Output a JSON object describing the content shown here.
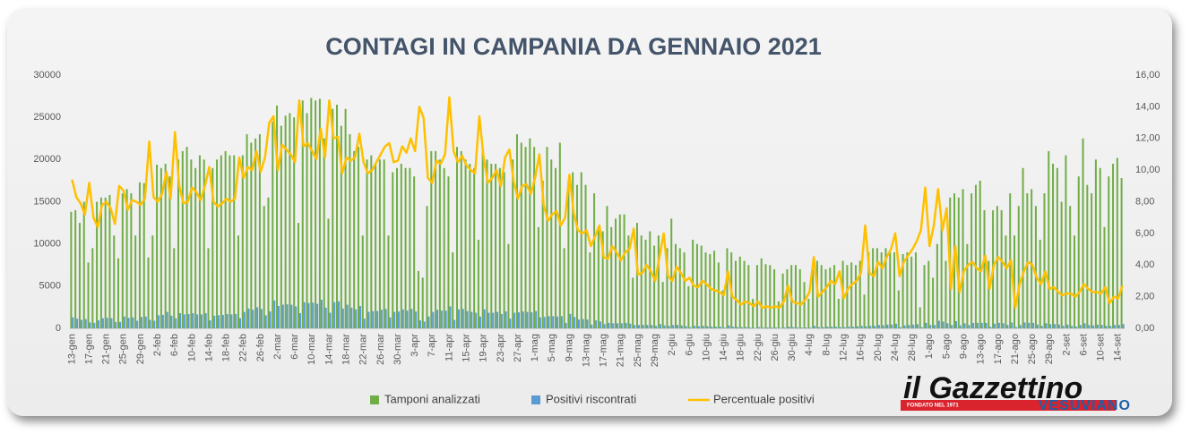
{
  "chart_data": {
    "type": "bar-line",
    "title": "CONTAGI IN CAMPANIA DA GENNAIO 2021",
    "categories": [
      "13-gen",
      null,
      null,
      null,
      "17-gen",
      null,
      null,
      null,
      "21-gen",
      null,
      null,
      null,
      "25-gen",
      null,
      null,
      null,
      "29-gen",
      null,
      null,
      null,
      "2-feb",
      null,
      null,
      null,
      "6-feb",
      null,
      null,
      null,
      "10-feb",
      null,
      null,
      null,
      "14-feb",
      null,
      null,
      null,
      "18-feb",
      null,
      null,
      null,
      "22-feb",
      null,
      null,
      null,
      "26-feb",
      null,
      null,
      null,
      "2-mar",
      null,
      null,
      null,
      "6-mar",
      null,
      null,
      null,
      "10-mar",
      null,
      null,
      null,
      "14-mar",
      null,
      null,
      null,
      "18-mar",
      null,
      null,
      null,
      "22-mar",
      null,
      null,
      null,
      "26-mar",
      null,
      null,
      null,
      "30-mar",
      null,
      null,
      null,
      "3-apr",
      null,
      null,
      null,
      "7-apr",
      null,
      null,
      null,
      "11-apr",
      null,
      null,
      null,
      "15-apr",
      null,
      null,
      null,
      "19-apr",
      null,
      null,
      null,
      "23-apr",
      null,
      null,
      null,
      "27-apr",
      null,
      null,
      null,
      "1-mag",
      null,
      null,
      null,
      "5-mag",
      null,
      null,
      null,
      "9-mag",
      null,
      null,
      null,
      "13-mag",
      null,
      null,
      null,
      "17-mag",
      null,
      null,
      null,
      "21-mag",
      null,
      null,
      null,
      "25-mag",
      null,
      null,
      null,
      "29-mag",
      null,
      null,
      null,
      "2-giu",
      null,
      null,
      null,
      "6-giu",
      null,
      null,
      null,
      "10-giu",
      null,
      null,
      null,
      "14-giu",
      null,
      null,
      null,
      "18-giu",
      null,
      null,
      null,
      "22-giu",
      null,
      null,
      null,
      "26-giu",
      null,
      null,
      null,
      "30-giu",
      null,
      null,
      null,
      "4-lug",
      null,
      null,
      null,
      "8-lug",
      null,
      null,
      null,
      "12-lug",
      null,
      null,
      null,
      "16-lug",
      null,
      null,
      null,
      "20-lug",
      null,
      null,
      null,
      "24-lug",
      null,
      null,
      null,
      "28-lug",
      null,
      null,
      null,
      "1-ago",
      null,
      null,
      null,
      "5-ago",
      null,
      null,
      null,
      "9-ago",
      null,
      null,
      null,
      "13-ago",
      null,
      null,
      null,
      "17-ago",
      null,
      null,
      null,
      "21-ago",
      null,
      null,
      null,
      "25-ago",
      null,
      null,
      null,
      "29-ago",
      null,
      null,
      null,
      "2-set",
      null,
      null,
      null,
      "6-set",
      null,
      null,
      null,
      "10-set",
      null,
      null,
      null,
      "14-set",
      null
    ],
    "series": [
      {
        "name": "Tamponi analizzati",
        "type": "bar",
        "color": "#70ad47",
        "values": [
          13800,
          14000,
          12500,
          15000,
          7800,
          9500,
          15000,
          15500,
          15500,
          15800,
          11000,
          8300,
          16000,
          16500,
          16000,
          11000,
          17300,
          17200,
          8400,
          11000,
          19400,
          19000,
          19500,
          18000,
          9500,
          20000,
          21000,
          21500,
          20000,
          19000,
          20500,
          20000,
          9500,
          19000,
          20000,
          20500,
          21000,
          20500,
          20500,
          11000,
          20500,
          23000,
          22000,
          22500,
          23000,
          14500,
          15500,
          24500,
          26400,
          24000,
          25200,
          25500,
          25000,
          12500,
          27000,
          25500,
          27300,
          27000,
          27200,
          22500,
          13000,
          26000,
          26500,
          24000,
          26000,
          23000,
          21000,
          21500,
          11000,
          20000,
          20500,
          19500,
          20000,
          20000,
          11000,
          18500,
          19000,
          19500,
          19000,
          19000,
          18000,
          6800,
          6000,
          14500,
          21000,
          21000,
          20000,
          19000,
          18000,
          9000,
          21500,
          21000,
          20000,
          19500,
          19000,
          10500,
          21000,
          20000,
          19500,
          19500,
          19000,
          18500,
          10000,
          20000,
          23000,
          22000,
          21500,
          22500,
          21500,
          12000,
          17500,
          21500,
          20000,
          19000,
          22000,
          9500,
          17500,
          18500,
          17000,
          18500,
          17000,
          9000,
          16000,
          12000,
          11500,
          14500,
          12000,
          13000,
          13500,
          13500,
          11000,
          6000,
          12500,
          11000,
          10500,
          11500,
          9800,
          11000,
          5500,
          9500,
          13000,
          10000,
          9500,
          9000,
          5000,
          10500,
          10000,
          9800,
          9000,
          8800,
          9200,
          7800,
          4500,
          9500,
          9000,
          8000,
          8500,
          8000,
          7500,
          3500,
          7500,
          8300,
          7600,
          7500,
          7000,
          3200,
          6500,
          7000,
          7500,
          7500,
          7000,
          5500,
          3500,
          7000,
          8000,
          7500,
          7000,
          7200,
          7500,
          3500,
          8000,
          7500,
          7800,
          7500,
          8000,
          4000,
          9000,
          9500,
          9500,
          9000,
          9500,
          9000,
          9000,
          4500,
          8800,
          9000,
          8500,
          9000,
          2500,
          7500,
          8000,
          6000,
          10000,
          12500,
          8000,
          15500,
          16000,
          15500,
          16500,
          10000,
          16000,
          17000,
          17500,
          14000,
          8000,
          14000,
          14500,
          14000,
          11000,
          16000,
          11000,
          14500,
          19000,
          16000,
          16500,
          14500,
          10500,
          16000,
          21000,
          19500,
          19000,
          15000,
          20500,
          14500,
          11000,
          18000,
          22500,
          17000,
          16000,
          20000,
          19000,
          12000,
          18000,
          19500,
          20200,
          17800
        ]
      },
      {
        "name": "Positivi riscontrati",
        "type": "bar",
        "color": "#5b9bd5",
        "values": [
          1300,
          1150,
          1000,
          1100,
          700,
          650,
          950,
          1200,
          1250,
          1200,
          750,
          750,
          1400,
          1250,
          1300,
          900,
          1350,
          1400,
          1000,
          900,
          1550,
          1600,
          1950,
          1500,
          1200,
          1800,
          1650,
          1700,
          1800,
          1650,
          1650,
          1800,
          950,
          1500,
          1550,
          1600,
          1700,
          1650,
          1700,
          1200,
          1950,
          2350,
          2200,
          2500,
          2300,
          1550,
          2000,
          3300,
          2650,
          2800,
          2850,
          2800,
          2600,
          1800,
          3100,
          3000,
          3050,
          2900,
          3400,
          2450,
          1850,
          3100,
          3200,
          2350,
          2800,
          2450,
          2250,
          2650,
          1150,
          1950,
          2050,
          2050,
          2200,
          2300,
          1300,
          1950,
          2000,
          2250,
          2100,
          2300,
          2000,
          950,
          800,
          1400,
          1950,
          2200,
          2100,
          2100,
          2600,
          1000,
          2250,
          2300,
          2050,
          1950,
          1850,
          1400,
          2250,
          1850,
          1850,
          1950,
          1700,
          2000,
          1150,
          1850,
          1900,
          2000,
          1950,
          1900,
          2050,
          1300,
          1350,
          1450,
          1450,
          1400,
          1450,
          650,
          1700,
          1350,
          1050,
          1100,
          1050,
          450,
          950,
          800,
          500,
          650,
          600,
          600,
          600,
          650,
          550,
          400,
          400,
          400,
          400,
          400,
          300,
          500,
          350,
          300,
          400,
          400,
          350,
          250,
          150,
          300,
          250,
          300,
          250,
          200,
          200,
          200,
          100,
          350,
          200,
          150,
          150,
          150,
          100,
          50,
          150,
          100,
          100,
          100,
          100,
          50,
          100,
          200,
          150,
          100,
          100,
          100,
          100,
          300,
          150,
          150,
          200,
          200,
          200,
          150,
          150,
          200,
          200,
          250,
          300,
          250,
          300,
          300,
          400,
          350,
          450,
          450,
          550,
          150,
          350,
          400,
          450,
          500,
          150,
          650,
          400,
          400,
          900,
          800,
          600,
          400,
          850,
          350,
          600,
          400,
          650,
          650,
          650,
          650,
          200,
          550,
          650,
          600,
          400,
          700,
          150,
          400,
          700,
          650,
          650,
          450,
          300,
          600,
          500,
          500,
          450,
          300,
          450,
          300,
          200,
          400,
          600,
          400,
          350,
          450,
          400,
          300,
          300,
          400,
          400,
          500
        ]
      },
      {
        "name": "Percentuale positivi",
        "type": "line",
        "axis": "y2",
        "color": "#ffc000",
        "values": [
          9.4,
          8.3,
          7.9,
          7.2,
          9.2,
          7.0,
          6.4,
          7.8,
          8.0,
          7.6,
          6.6,
          9.0,
          8.7,
          7.5,
          8.1,
          8.0,
          7.8,
          8.2,
          11.8,
          8.3,
          8.0,
          8.5,
          9.9,
          8.2,
          12.4,
          9.0,
          7.9,
          8.0,
          8.9,
          8.6,
          8.1,
          9.0,
          10.2,
          8.0,
          7.7,
          7.9,
          8.2,
          8.0,
          8.2,
          10.8,
          9.5,
          10.2,
          10.0,
          11.2,
          9.9,
          10.8,
          13.0,
          13.4,
          10.0,
          11.6,
          11.3,
          11.0,
          10.5,
          14.4,
          11.5,
          11.7,
          11.2,
          10.7,
          12.6,
          10.8,
          14.4,
          12.0,
          12.1,
          9.8,
          10.8,
          10.6,
          10.8,
          12.3,
          10.5,
          9.8,
          10.0,
          10.5,
          11.0,
          11.5,
          11.7,
          10.5,
          10.6,
          11.5,
          11.1,
          12.0,
          11.2,
          14.0,
          13.3,
          9.5,
          9.2,
          10.6,
          10.4,
          11.0,
          14.6,
          11.2,
          10.5,
          10.9,
          10.3,
          10.0,
          9.8,
          13.4,
          10.8,
          9.2,
          9.5,
          10.0,
          9.0,
          10.8,
          11.3,
          9.3,
          8.2,
          9.0,
          9.1,
          8.5,
          9.5,
          11.0,
          7.8,
          6.8,
          7.2,
          7.4,
          6.5,
          7.0,
          9.7,
          7.3,
          6.2,
          6.0,
          6.2,
          5.2,
          5.8,
          6.5,
          4.5,
          4.4,
          5.2,
          4.8,
          4.3,
          4.8,
          5.0,
          6.3,
          3.4,
          3.5,
          4.0,
          3.6,
          3.0,
          4.5,
          6.0,
          3.3,
          3.0,
          3.9,
          3.5,
          3.0,
          3.2,
          2.7,
          2.6,
          3.0,
          2.8,
          2.5,
          2.4,
          2.3,
          2.1,
          3.6,
          2.0,
          1.8,
          1.5,
          1.7,
          1.6,
          1.4,
          1.7,
          1.3,
          1.4,
          1.3,
          1.4,
          1.3,
          1.7,
          2.7,
          1.7,
          1.6,
          1.5,
          1.8,
          2.3,
          4.5,
          2.0,
          2.3,
          2.6,
          3.0,
          2.8,
          3.6,
          1.9,
          2.5,
          2.8,
          3.0,
          3.5,
          6.5,
          3.5,
          3.3,
          4.2,
          3.8,
          4.5,
          5.0,
          6.0,
          3.3,
          4.2,
          4.6,
          5.0,
          5.5,
          6.2,
          8.9,
          5.2,
          6.5,
          8.8,
          6.2,
          7.6,
          2.5,
          5.2,
          2.3,
          3.6,
          4.0,
          4.2,
          3.8,
          3.6,
          4.6,
          2.5,
          4.0,
          4.5,
          4.2,
          3.8,
          4.3,
          1.3,
          2.8,
          3.6,
          4.2,
          4.0,
          3.2,
          2.8,
          3.6,
          2.5,
          2.6,
          2.3,
          2.1,
          2.2,
          2.2,
          2.0,
          2.3,
          2.8,
          2.5,
          2.3,
          2.3,
          2.2,
          2.6,
          1.6,
          2.0,
          1.9,
          2.7
        ]
      }
    ],
    "ylim": [
      0,
      30000
    ],
    "yticks": [
      0,
      5000,
      10000,
      15000,
      20000,
      25000,
      30000
    ],
    "y2lim": [
      0,
      16
    ],
    "y2ticks": [
      {
        "value": 0,
        "label": "0,00"
      },
      {
        "value": 2,
        "label": "2,00"
      },
      {
        "value": 4,
        "label": "4,00"
      },
      {
        "value": 6,
        "label": "6,00"
      },
      {
        "value": 8,
        "label": "8,00"
      },
      {
        "value": 10,
        "label": "10,00"
      },
      {
        "value": 12,
        "label": "12,00"
      },
      {
        "value": 14,
        "label": "14,00"
      },
      {
        "value": 16,
        "label": "16,00"
      }
    ],
    "grid": false,
    "legend": "bottom"
  },
  "logo": {
    "name": "il Gazzettino",
    "note": "FONDATO NEL 1971",
    "sub": "VESUVIANO"
  }
}
